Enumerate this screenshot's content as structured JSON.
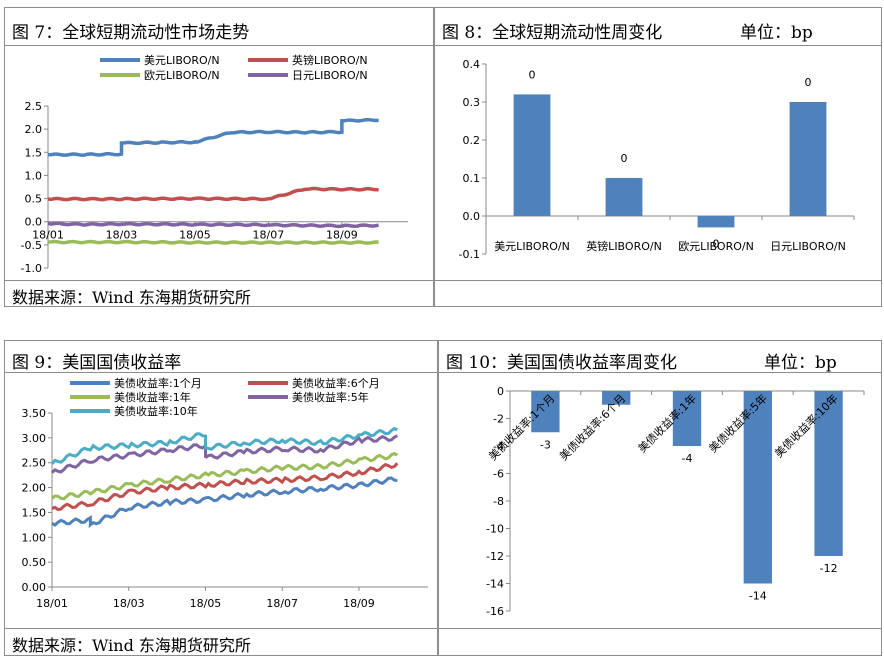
{
  "footer": {
    "source": "数据来源：Wind   东海期货研究所"
  },
  "charts": {
    "fig7": {
      "title": "图 7：全球短期流动性市场走势",
      "chart_data": {
        "type": "line",
        "x": [
          "18/01",
          "18/03",
          "18/05",
          "18/07",
          "18/09",
          "18/10"
        ],
        "x_tick_labels": [
          "18/01",
          "18/03",
          "18/05",
          "18/07",
          "18/09"
        ],
        "ylim": [
          -1.0,
          2.5
        ],
        "y_ticks": [
          -1.0,
          -0.5,
          0.0,
          0.5,
          1.0,
          1.5,
          2.0,
          2.5
        ],
        "y_tick_labels": [
          "-1.0",
          "-0.5",
          "0.0",
          "0.5",
          "1.0",
          "1.5",
          "2.0",
          "2.5"
        ],
        "legend_position": "top",
        "series": [
          {
            "name": "美元LIBORO/N",
            "color": "#4f81bd",
            "points": [
              [
                "18/01",
                1.45
              ],
              [
                "18/02",
                1.45
              ],
              [
                "18/03",
                1.46
              ],
              [
                "18/03",
                1.7
              ],
              [
                "18/04",
                1.71
              ],
              [
                "18/05",
                1.72
              ],
              [
                "18/05",
                1.72
              ],
              [
                "18/06",
                1.93
              ],
              [
                "18/07",
                1.94
              ],
              [
                "18/08",
                1.93
              ],
              [
                "18/09",
                1.94
              ],
              [
                "18/09",
                2.18
              ],
              [
                "18/10",
                2.2
              ]
            ]
          },
          {
            "name": "英镑LIBORO/N",
            "color": "#c0504d",
            "points": [
              [
                "18/01",
                0.49
              ],
              [
                "18/03",
                0.49
              ],
              [
                "18/05",
                0.5
              ],
              [
                "18/07",
                0.49
              ],
              [
                "18/08",
                0.71
              ],
              [
                "18/09",
                0.7
              ],
              [
                "18/10",
                0.7
              ]
            ]
          },
          {
            "name": "欧元LIBORO/N",
            "color": "#9bbb59",
            "points": [
              [
                "18/01",
                -0.44
              ],
              [
                "18/03",
                -0.44
              ],
              [
                "18/05",
                -0.45
              ],
              [
                "18/07",
                -0.45
              ],
              [
                "18/09",
                -0.45
              ],
              [
                "18/10",
                -0.45
              ]
            ]
          },
          {
            "name": "日元LIBORO/N",
            "color": "#8064a2",
            "points": [
              [
                "18/01",
                -0.04
              ],
              [
                "18/02",
                -0.06
              ],
              [
                "18/03",
                -0.05
              ],
              [
                "18/05",
                -0.06
              ],
              [
                "18/07",
                -0.07
              ],
              [
                "18/09",
                -0.09
              ],
              [
                "18/10",
                -0.08
              ]
            ]
          }
        ]
      }
    },
    "fig8": {
      "title": "图 8：全球短期流动性周变化",
      "unit": "单位：bp",
      "chart_data": {
        "type": "bar",
        "categories": [
          "美元LIBORO/N",
          "英镑LIBORO/N",
          "欧元LIBORO/N",
          "日元LIBORO/N"
        ],
        "values": [
          0.32,
          0.1,
          -0.03,
          0.3
        ],
        "data_labels": [
          "0",
          "0",
          "0",
          "0"
        ],
        "ylim": [
          -0.1,
          0.4
        ],
        "y_ticks": [
          -0.1,
          0.0,
          0.1,
          0.2,
          0.3,
          0.4
        ],
        "y_tick_labels": [
          "-0.1",
          "0.0",
          "0.1",
          "0.2",
          "0.3",
          "0.4"
        ],
        "color": "#4f81bd"
      }
    },
    "fig9": {
      "title": "图 9：美国国债收益率",
      "chart_data": {
        "type": "line",
        "x": [
          "18/01",
          "18/03",
          "18/05",
          "18/07",
          "18/09",
          "18/10"
        ],
        "x_tick_labels": [
          "18/01",
          "18/03",
          "18/05",
          "18/07",
          "18/09"
        ],
        "ylim": [
          0.0,
          3.5
        ],
        "y_ticks": [
          0.0,
          0.5,
          1.0,
          1.5,
          2.0,
          2.5,
          3.0,
          3.5
        ],
        "y_tick_labels": [
          "0.00",
          "0.50",
          "1.00",
          "1.50",
          "2.00",
          "2.50",
          "3.00",
          "3.50"
        ],
        "legend_position": "top",
        "series": [
          {
            "name": "美债收益率:1个月",
            "color": "#4f81bd",
            "points": [
              [
                "18/01",
                1.28
              ],
              [
                "18/02",
                1.35
              ],
              [
                "18/02",
                1.25
              ],
              [
                "18/03",
                1.6
              ],
              [
                "18/04",
                1.7
              ],
              [
                "18/05",
                1.75
              ],
              [
                "18/06",
                1.85
              ],
              [
                "18/07",
                1.92
              ],
              [
                "18/08",
                1.98
              ],
              [
                "18/09",
                2.05
              ],
              [
                "18/10",
                2.18
              ]
            ]
          },
          {
            "name": "美债收益率:6个月",
            "color": "#c0504d",
            "points": [
              [
                "18/01",
                1.58
              ],
              [
                "18/02",
                1.68
              ],
              [
                "18/03",
                1.9
              ],
              [
                "18/04",
                2.0
              ],
              [
                "18/05",
                2.05
              ],
              [
                "18/06",
                2.12
              ],
              [
                "18/07",
                2.15
              ],
              [
                "18/08",
                2.2
              ],
              [
                "18/09",
                2.3
              ],
              [
                "18/10",
                2.47
              ]
            ]
          },
          {
            "name": "美债收益率:1年",
            "color": "#9bbb59",
            "points": [
              [
                "18/01",
                1.78
              ],
              [
                "18/02",
                1.9
              ],
              [
                "18/03",
                2.05
              ],
              [
                "18/04",
                2.15
              ],
              [
                "18/05",
                2.25
              ],
              [
                "18/06",
                2.32
              ],
              [
                "18/07",
                2.4
              ],
              [
                "18/08",
                2.42
              ],
              [
                "18/09",
                2.55
              ],
              [
                "18/10",
                2.65
              ]
            ]
          },
          {
            "name": "美债收益率:5年",
            "color": "#8064a2",
            "points": [
              [
                "18/01",
                2.3
              ],
              [
                "18/02",
                2.55
              ],
              [
                "18/03",
                2.65
              ],
              [
                "18/04",
                2.75
              ],
              [
                "18/05",
                2.85
              ],
              [
                "18/05",
                2.6
              ],
              [
                "18/06",
                2.72
              ],
              [
                "18/07",
                2.78
              ],
              [
                "18/08",
                2.75
              ],
              [
                "18/09",
                2.95
              ],
              [
                "18/10",
                3.0
              ]
            ]
          },
          {
            "name": "美债收益率:10年",
            "color": "#4bacc6",
            "points": [
              [
                "18/01",
                2.48
              ],
              [
                "18/02",
                2.8
              ],
              [
                "18/03",
                2.85
              ],
              [
                "18/04",
                2.9
              ],
              [
                "18/05",
                3.08
              ],
              [
                "18/05",
                2.8
              ],
              [
                "18/06",
                2.9
              ],
              [
                "18/07",
                2.95
              ],
              [
                "18/08",
                2.9
              ],
              [
                "18/09",
                3.05
              ],
              [
                "18/10",
                3.15
              ]
            ]
          }
        ]
      }
    },
    "fig10": {
      "title": "图 10：美国国债收益率周变化",
      "unit": "单位：bp",
      "chart_data": {
        "type": "bar",
        "categories": [
          "美债收益率:1个月",
          "美债收益率:6个月",
          "美债收益率:1年",
          "美债收益率:5年",
          "美债收益率:10年"
        ],
        "values": [
          -3,
          -1,
          -4,
          -14,
          -12
        ],
        "data_labels": [
          "-3",
          "",
          "-4",
          "-14",
          "-12"
        ],
        "ylim": [
          -16,
          0
        ],
        "y_ticks": [
          -16,
          -14,
          -12,
          -10,
          -8,
          -6,
          -4,
          -2,
          0
        ],
        "y_tick_labels": [
          "-16",
          "-14",
          "-12",
          "-10",
          "-8",
          "-6",
          "-4",
          "-2",
          "0"
        ],
        "color": "#4f81bd"
      }
    }
  }
}
